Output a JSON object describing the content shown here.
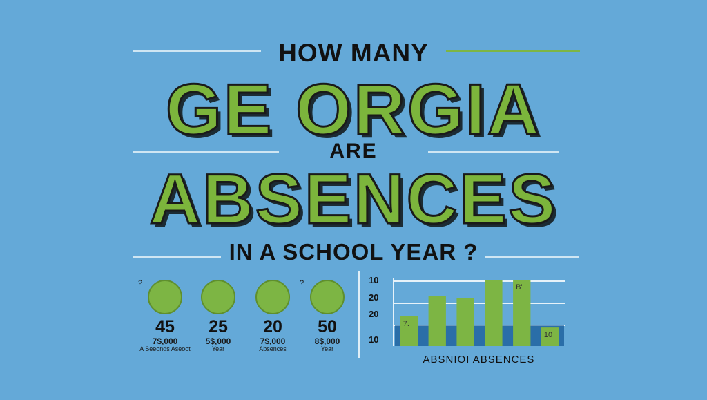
{
  "headline": {
    "line1": "HOW MANY",
    "line2": "GE ORGIA",
    "line3": "ARE",
    "line4": "ABSENCES",
    "line5": "IN A SCHOOL YEAR ?"
  },
  "stats": [
    {
      "mark": "?",
      "value": "45",
      "sub": "7$,000",
      "sub2": "A Seeonds Aseoot"
    },
    {
      "mark": "",
      "value": "25",
      "sub": "5$,000",
      "sub2": "Year"
    },
    {
      "mark": "?",
      "value": "20",
      "sub": "7$,000",
      "sub2": "Absences"
    },
    {
      "mark": "",
      "value": "50",
      "sub": "8$,000",
      "sub2": "Year"
    }
  ],
  "colors": {
    "background": "#64a9d8",
    "green": "#7db544",
    "dark_blue": "#2a6ea8"
  },
  "chart_data": {
    "type": "bar",
    "ytick_labels": [
      "10",
      "20",
      "20",
      "10"
    ],
    "bar_labels": {
      "first": "7.",
      "tallest": "B'",
      "last": "10"
    },
    "values": [
      0.45,
      0.75,
      0.72,
      1.0,
      1.0,
      0.28
    ],
    "baseline_band": 0.28,
    "xlabel": "ABSNIOI ABSENCES",
    "grid": true
  }
}
